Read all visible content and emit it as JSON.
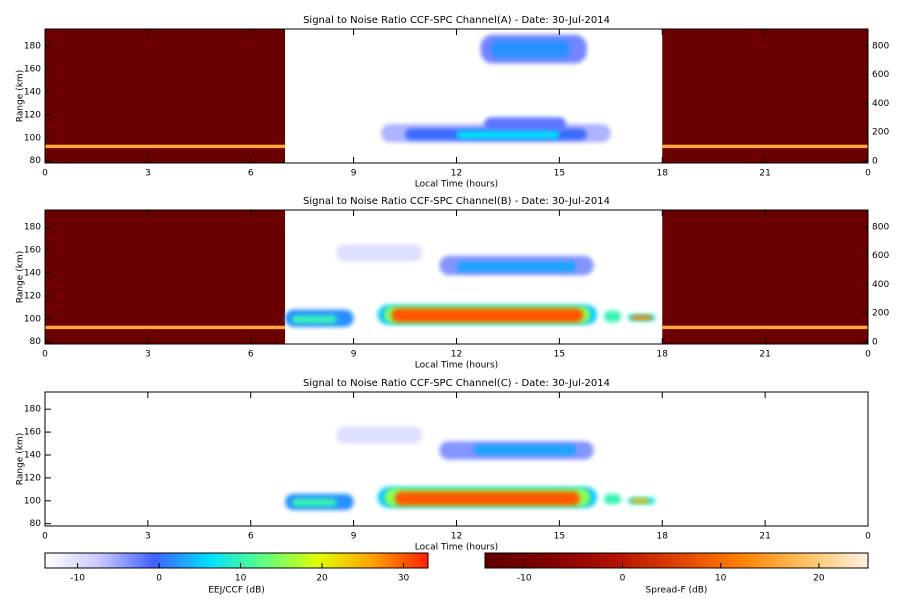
{
  "chart_data": [
    {
      "type": "heatmap",
      "title": "Signal to Noise Ratio CCF-SPC Channel(A) - Date: 30-Jul-2014",
      "x_label": "Local Time (hours)",
      "y_label": "Range (km)",
      "xlim": [
        0,
        24
      ],
      "xticks": [
        0,
        3,
        6,
        9,
        12,
        15,
        18,
        21,
        {
          "value": 24,
          "label": "0"
        }
      ],
      "ylim": [
        78,
        195
      ],
      "yticks": [
        80,
        100,
        120,
        140,
        160,
        180
      ],
      "y2lim": [
        -14,
        918
      ],
      "y2ticks": [
        0,
        200,
        400,
        600,
        800
      ],
      "spread_f": [
        {
          "x": [
            0,
            7
          ],
          "y": [
            78,
            195
          ],
          "value": -12
        },
        {
          "x": [
            0,
            7
          ],
          "y": [
            91,
            94
          ],
          "value": 16
        },
        {
          "x": [
            18,
            24
          ],
          "y": [
            78,
            195
          ],
          "value": -12
        },
        {
          "x": [
            18,
            24
          ],
          "y": [
            91,
            94
          ],
          "value": 16
        }
      ],
      "echoes": [
        {
          "x": [
            12.7,
            15.8
          ],
          "y": [
            165,
            190
          ],
          "value": -3
        },
        {
          "x": [
            13,
            15.3
          ],
          "y": [
            170,
            185
          ],
          "value": 2
        },
        {
          "x": [
            9.8,
            16.5
          ],
          "y": [
            96,
            112
          ],
          "value": -6
        },
        {
          "x": [
            10.5,
            15.8
          ],
          "y": [
            98,
            108
          ],
          "value": 0
        },
        {
          "x": [
            12.8,
            15.2
          ],
          "y": [
            105,
            118
          ],
          "value": -2
        },
        {
          "x": [
            12,
            15
          ],
          "y": [
            99,
            106
          ],
          "value": 6
        }
      ]
    },
    {
      "type": "heatmap",
      "title": "Signal to Noise Ratio CCF-SPC Channel(B) - Date: 30-Jul-2014",
      "x_label": "Local Time (hours)",
      "y_label": "Range (km)",
      "xlim": [
        0,
        24
      ],
      "xticks": [
        0,
        3,
        6,
        9,
        12,
        15,
        18,
        21,
        {
          "value": 24,
          "label": "0"
        }
      ],
      "ylim": [
        78,
        195
      ],
      "yticks": [
        80,
        100,
        120,
        140,
        160,
        180
      ],
      "y2lim": [
        -14,
        918
      ],
      "y2ticks": [
        0,
        200,
        400,
        600,
        800
      ],
      "spread_f": [
        {
          "x": [
            0,
            7
          ],
          "y": [
            78,
            195
          ],
          "value": -12
        },
        {
          "x": [
            0,
            7
          ],
          "y": [
            91,
            94
          ],
          "value": 16
        },
        {
          "x": [
            18,
            24
          ],
          "y": [
            78,
            195
          ],
          "value": -12
        },
        {
          "x": [
            18,
            24
          ],
          "y": [
            91,
            94
          ],
          "value": 16
        }
      ],
      "echoes": [
        {
          "x": [
            8.5,
            11
          ],
          "y": [
            150,
            165
          ],
          "value": -10
        },
        {
          "x": [
            11.5,
            16
          ],
          "y": [
            138,
            155
          ],
          "value": -4
        },
        {
          "x": [
            12,
            15.5
          ],
          "y": [
            141,
            150
          ],
          "value": 3
        },
        {
          "x": [
            7,
            9
          ],
          "y": [
            93,
            108
          ],
          "value": 2
        },
        {
          "x": [
            7.2,
            8.5
          ],
          "y": [
            96,
            103
          ],
          "value": 10
        },
        {
          "x": [
            9.7,
            16.1
          ],
          "y": [
            95,
            112
          ],
          "value": 5
        },
        {
          "x": [
            9.9,
            15.9
          ],
          "y": [
            96,
            111
          ],
          "value": 15
        },
        {
          "x": [
            10.1,
            15.7
          ],
          "y": [
            97,
            109
          ],
          "value": 30
        },
        {
          "x": [
            16.3,
            16.8
          ],
          "y": [
            97,
            107
          ],
          "value": 10
        },
        {
          "x": [
            17,
            17.8
          ],
          "y": [
            98,
            104
          ],
          "value": 8
        },
        {
          "x": [
            17.1,
            17.7
          ],
          "y": [
            99,
            103
          ],
          "value": 28
        }
      ]
    },
    {
      "type": "heatmap",
      "title": "Signal to Noise Ratio CCF-SPC Channel(C) - Date: 30-Jul-2014",
      "x_label": "Local Time (hours)",
      "y_label": "Range (km)",
      "xlim": [
        0,
        24
      ],
      "xticks": [
        0,
        3,
        6,
        9,
        12,
        15,
        18,
        21,
        {
          "value": 24,
          "label": "0"
        }
      ],
      "ylim": [
        78,
        195
      ],
      "yticks": [
        80,
        100,
        120,
        140,
        160,
        180
      ],
      "echoes": [
        {
          "x": [
            8.5,
            11
          ],
          "y": [
            150,
            165
          ],
          "value": -10
        },
        {
          "x": [
            11.5,
            16
          ],
          "y": [
            136,
            152
          ],
          "value": -4
        },
        {
          "x": [
            12.5,
            15.5
          ],
          "y": [
            140,
            149
          ],
          "value": 3
        },
        {
          "x": [
            7,
            9
          ],
          "y": [
            92,
            106
          ],
          "value": 2
        },
        {
          "x": [
            7.2,
            8.5
          ],
          "y": [
            95,
            102
          ],
          "value": 10
        },
        {
          "x": [
            9.7,
            16.1
          ],
          "y": [
            94,
            112
          ],
          "value": 5
        },
        {
          "x": [
            9.9,
            15.9
          ],
          "y": [
            95,
            111
          ],
          "value": 15
        },
        {
          "x": [
            10.2,
            15.6
          ],
          "y": [
            96,
            108
          ],
          "value": 30
        },
        {
          "x": [
            16.3,
            16.8
          ],
          "y": [
            97,
            106
          ],
          "value": 10
        },
        {
          "x": [
            17,
            17.8
          ],
          "y": [
            97,
            103
          ],
          "value": 8
        },
        {
          "x": [
            17.1,
            17.6
          ],
          "y": [
            98,
            102
          ],
          "value": 25
        }
      ]
    },
    {
      "type": "colorbar",
      "label": "EEJ/CCF (dB)",
      "lim": [
        -14,
        33
      ],
      "ticks": [
        -10,
        0,
        10,
        20,
        30
      ],
      "colors": [
        "#ffffff",
        "#c8c8ff",
        "#4060ff",
        "#00e0ff",
        "#60ff80",
        "#e0ff00",
        "#ffa000",
        "#ff2000"
      ]
    },
    {
      "type": "colorbar",
      "label": "Spread-F (dB)",
      "lim": [
        -14,
        25
      ],
      "ticks": [
        -10,
        0,
        10,
        20
      ],
      "colors": [
        "#600000",
        "#800000",
        "#b01000",
        "#e04000",
        "#ff8000",
        "#ffc060",
        "#fff0e0"
      ]
    }
  ]
}
